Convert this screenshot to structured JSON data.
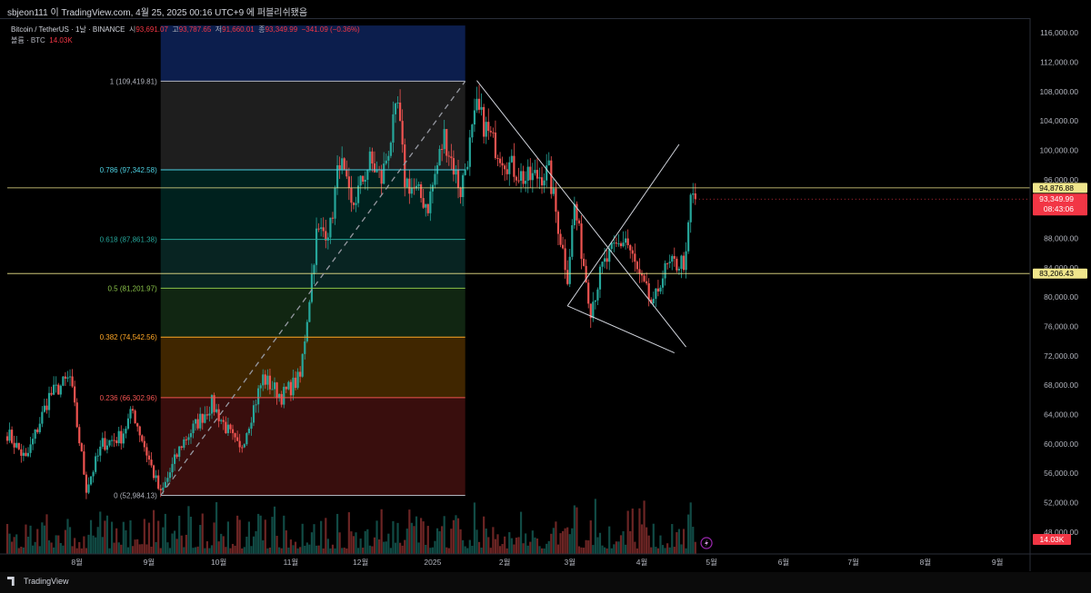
{
  "window": {
    "title": "sbjeon111 이 TradingView.com, 4월 25, 2025 00:16 UTC+9 에 퍼블리쉬됐음"
  },
  "legend": {
    "symbol": "Bitcoin / TetherUS · 1날 · BINANCE",
    "open_label": "시",
    "open": "93,691.07",
    "high_label": "고",
    "high": "93,787.65",
    "low_label": "저",
    "low": "91,660.01",
    "close_label": "종",
    "close": "93,349.99",
    "change": "−341.09 (−0.36%)",
    "volume_label": "볼륨 · BTC",
    "volume": "14.03K"
  },
  "branding": {
    "logo_text": "TradingView"
  },
  "colors": {
    "up": "#26a69a",
    "down": "#ef5350",
    "background": "#000000",
    "hline": "#f0e68c",
    "price_label_bg": "#f23645"
  },
  "chart_data": {
    "type": "candlestick",
    "y_axis": {
      "ticks": [
        48000,
        52000,
        56000,
        60000,
        64000,
        68000,
        72000,
        76000,
        80000,
        84000,
        88000,
        92000,
        96000,
        100000,
        104000,
        108000,
        112000,
        116000
      ],
      "tick_labels": [
        "48,000.00",
        "52,000.00",
        "56,000.00",
        "60,000.00",
        "64,000.00",
        "68,000.00",
        "72,000.00",
        "76,000.00",
        "80,000.00",
        "84,000.00",
        "88,000.00",
        "92,000.00",
        "96,000.00",
        "100,000.00",
        "104,000.00",
        "108,000.00",
        "112,000.00",
        "116,000.00"
      ],
      "range": [
        45000,
        118000
      ]
    },
    "x_axis": {
      "labels": [
        "8월",
        "9월",
        "10월",
        "11월",
        "12월",
        "2025",
        "2월",
        "3월",
        "4월",
        "5월",
        "6월",
        "7월",
        "8월",
        "9월"
      ],
      "label_dates": [
        "2024-08-01",
        "2024-09-01",
        "2024-10-01",
        "2024-11-01",
        "2024-12-01",
        "2025-01-01",
        "2025-02-01",
        "2025-03-01",
        "2025-04-01",
        "2025-05-01",
        "2025-06-01",
        "2025-07-01",
        "2025-08-01",
        "2025-09-01"
      ],
      "range": [
        "2024-07-02",
        "2025-09-15"
      ]
    },
    "fibonacci": {
      "start_date": "2024-09-06",
      "end_date": "2025-01-15",
      "levels": [
        {
          "ratio": "1",
          "price": 109419.81,
          "label": "1 (109,419.81)",
          "color": "#b2b5be",
          "fill": "rgba(120,120,120,0.25)"
        },
        {
          "ratio": "0.786",
          "price": 97342.58,
          "label": "0.786 (97,342.58)",
          "color": "#4dd0e1",
          "fill": "rgba(0,150,136,0.22)"
        },
        {
          "ratio": "0.618",
          "price": 87861.38,
          "label": "0.618 (87,861.38)",
          "color": "#26a69a",
          "fill": "rgba(38,166,154,0.22)"
        },
        {
          "ratio": "0.5",
          "price": 81201.97,
          "label": "0.5 (81,201.97)",
          "color": "#8bc34a",
          "fill": "rgba(76,175,80,0.22)"
        },
        {
          "ratio": "0.382",
          "price": 74542.56,
          "label": "0.382 (74,542.56)",
          "color": "#ffa726",
          "fill": "rgba(255,152,0,0.25)"
        },
        {
          "ratio": "0.236",
          "price": 66302.96,
          "label": "0.236 (66,302.96)",
          "color": "#ef5350",
          "fill": "rgba(229,57,53,0.25)"
        },
        {
          "ratio": "0",
          "price": 52984.13,
          "label": "0 (52,984.13)",
          "color": "#b2b5be"
        }
      ],
      "band_above_price": 117000,
      "band_above_fill": "rgba(41,98,255,0.30)"
    },
    "horizontal_lines": [
      {
        "price": 94876.88,
        "label": "94,876.88"
      },
      {
        "price": 83206.43,
        "label": "83,206.43"
      }
    ],
    "last_price": {
      "price": 93349.99,
      "label": "93,349.99",
      "countdown": "08:43:06"
    },
    "volume_label": "14.03K",
    "trendlines": [
      {
        "from": [
          "2025-01-20",
          109500
        ],
        "to": [
          "2025-04-20",
          73200
        ]
      },
      {
        "from": [
          "2025-02-28",
          78800
        ],
        "to": [
          "2025-04-17",
          100800
        ]
      },
      {
        "from": [
          "2025-02-28",
          78800
        ],
        "to": [
          "2025-04-15",
          72400
        ]
      },
      {
        "from": [
          "2024-09-06",
          53000
        ],
        "to": [
          "2025-01-15",
          109400
        ],
        "dashed": true
      }
    ],
    "pivots": [
      [
        "2024-07-02",
        61500
      ],
      [
        "2024-07-10",
        57800
      ],
      [
        "2024-07-20",
        66500
      ],
      [
        "2024-07-29",
        69000
      ],
      [
        "2024-08-05",
        54000
      ],
      [
        "2024-08-12",
        60000
      ],
      [
        "2024-08-20",
        61000
      ],
      [
        "2024-08-25",
        64500
      ],
      [
        "2024-09-06",
        53000
      ],
      [
        "2024-09-15",
        60000
      ],
      [
        "2024-09-28",
        65500
      ],
      [
        "2024-10-10",
        59000
      ],
      [
        "2024-10-20",
        69000
      ],
      [
        "2024-10-28",
        66500
      ],
      [
        "2024-11-05",
        69000
      ],
      [
        "2024-11-12",
        88500
      ],
      [
        "2024-11-18",
        89500
      ],
      [
        "2024-11-22",
        99000
      ],
      [
        "2024-11-27",
        92000
      ],
      [
        "2024-12-05",
        98500
      ],
      [
        "2024-12-10",
        96000
      ],
      [
        "2024-12-17",
        106000
      ],
      [
        "2024-12-20",
        96000
      ],
      [
        "2024-12-30",
        92500
      ],
      [
        "2025-01-06",
        102000
      ],
      [
        "2025-01-13",
        94500
      ],
      [
        "2025-01-20",
        105500
      ],
      [
        "2025-01-27",
        101000
      ],
      [
        "2025-02-03",
        98000
      ],
      [
        "2025-02-10",
        96000
      ],
      [
        "2025-02-20",
        97000
      ],
      [
        "2025-02-25",
        88000
      ],
      [
        "2025-02-28",
        83000
      ],
      [
        "2025-03-03",
        92500
      ],
      [
        "2025-03-10",
        78500
      ],
      [
        "2025-03-15",
        84000
      ],
      [
        "2025-03-20",
        86500
      ],
      [
        "2025-03-25",
        88000
      ],
      [
        "2025-03-31",
        82500
      ],
      [
        "2025-04-06",
        78500
      ],
      [
        "2025-04-09",
        82500
      ],
      [
        "2025-04-12",
        84000
      ],
      [
        "2025-04-20",
        85000
      ],
      [
        "2025-04-22",
        93500
      ],
      [
        "2025-04-24",
        93350
      ]
    ]
  }
}
